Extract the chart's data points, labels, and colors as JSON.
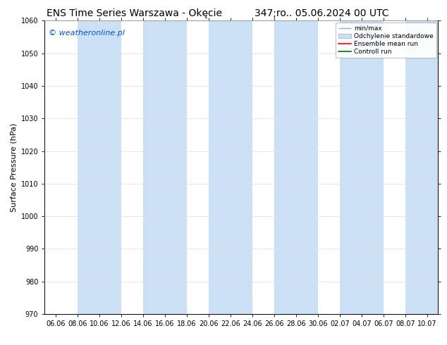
{
  "title_left": "ENS Time Series Warszawa - Okęcie",
  "title_right": "347;ro.. 05.06.2024 00 UTC",
  "ylabel": "Surface Pressure (hPa)",
  "watermark": "© weatheronline.pl",
  "watermark_color": "#0055cc",
  "ylim": [
    970,
    1060
  ],
  "yticks": [
    970,
    980,
    990,
    1000,
    1010,
    1020,
    1030,
    1040,
    1050,
    1060
  ],
  "xtick_labels": [
    "06.06",
    "08.06",
    "10.06",
    "12.06",
    "14.06",
    "16.06",
    "18.06",
    "20.06",
    "22.06",
    "24.06",
    "26.06",
    "28.06",
    "30.06",
    "02.07",
    "04.07",
    "06.07",
    "08.07",
    "10.07"
  ],
  "n_xticks": 18,
  "bg_color": "#ffffff",
  "plot_bg_color": "#ffffff",
  "band_color_light": "#ddeeff",
  "band_color": "#cce0f5",
  "band_positions_idx": [
    1,
    4,
    7,
    10,
    13,
    16
  ],
  "legend_labels": [
    "min/max",
    "Odchylenie standardowe",
    "Ensemble mean run",
    "Controll run"
  ],
  "legend_line_color": "#aaaaaa",
  "legend_band_color": "#cce0f5",
  "legend_ensemble_color": "#ff0000",
  "legend_control_color": "#007700",
  "title_fontsize": 10,
  "tick_fontsize": 7,
  "ylabel_fontsize": 8,
  "watermark_fontsize": 8
}
